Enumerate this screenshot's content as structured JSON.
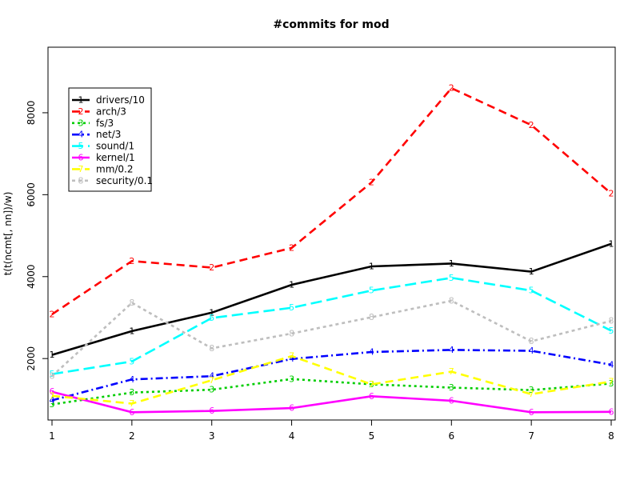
{
  "chart_data": {
    "type": "line",
    "title": "#commits for mod",
    "xlabel": "",
    "ylabel": "t(t(ncmt[, nn])/w)",
    "x": [
      1,
      2,
      3,
      4,
      5,
      6,
      7,
      8
    ],
    "x_ticks": [
      "1",
      "2",
      "3",
      "4",
      "5",
      "6",
      "7",
      "8"
    ],
    "y_ticks": [
      "2000",
      "4000",
      "6000",
      "8000"
    ],
    "xlim": [
      0.95,
      8.05
    ],
    "ylim": [
      500,
      9600
    ],
    "grid": false,
    "legend_position": "top-left",
    "series": [
      {
        "name": "drivers/10",
        "marker": "1",
        "color": "#000000",
        "dash": "",
        "values": [
          2090,
          2670,
          3120,
          3800,
          4250,
          4320,
          4120,
          4800
        ]
      },
      {
        "name": "arch/3",
        "marker": "2",
        "color": "#ff0000",
        "dash": "10,6",
        "values": [
          3080,
          4380,
          4220,
          4700,
          6300,
          8600,
          7700,
          6030
        ]
      },
      {
        "name": "fs/3",
        "marker": "3",
        "color": "#00cd00",
        "dash": "3,4",
        "values": [
          880,
          1170,
          1240,
          1500,
          1370,
          1290,
          1230,
          1390
        ]
      },
      {
        "name": "net/3",
        "marker": "4",
        "color": "#0000ff",
        "dash": "9,4,2,4",
        "values": [
          980,
          1490,
          1570,
          1990,
          2160,
          2210,
          2190,
          1850
        ]
      },
      {
        "name": "sound/1",
        "marker": "5",
        "color": "#00ffff",
        "dash": "14,6",
        "values": [
          1620,
          1930,
          2990,
          3240,
          3660,
          3970,
          3660,
          2680
        ]
      },
      {
        "name": "kernel/1",
        "marker": "6",
        "color": "#ff00ff",
        "dash": "",
        "values": [
          1190,
          690,
          720,
          790,
          1080,
          970,
          690,
          700
        ]
      },
      {
        "name": "mm/0.2",
        "marker": "7",
        "color": "#ffff00",
        "dash": "10,6",
        "values": [
          1090,
          900,
          1470,
          2060,
          1370,
          1680,
          1130,
          1440
        ]
      },
      {
        "name": "security/0.1",
        "marker": "8",
        "color": "#bebebe",
        "dash": "4,4",
        "values": [
          1570,
          3360,
          2250,
          2610,
          3010,
          3410,
          2420,
          2920
        ]
      }
    ]
  }
}
